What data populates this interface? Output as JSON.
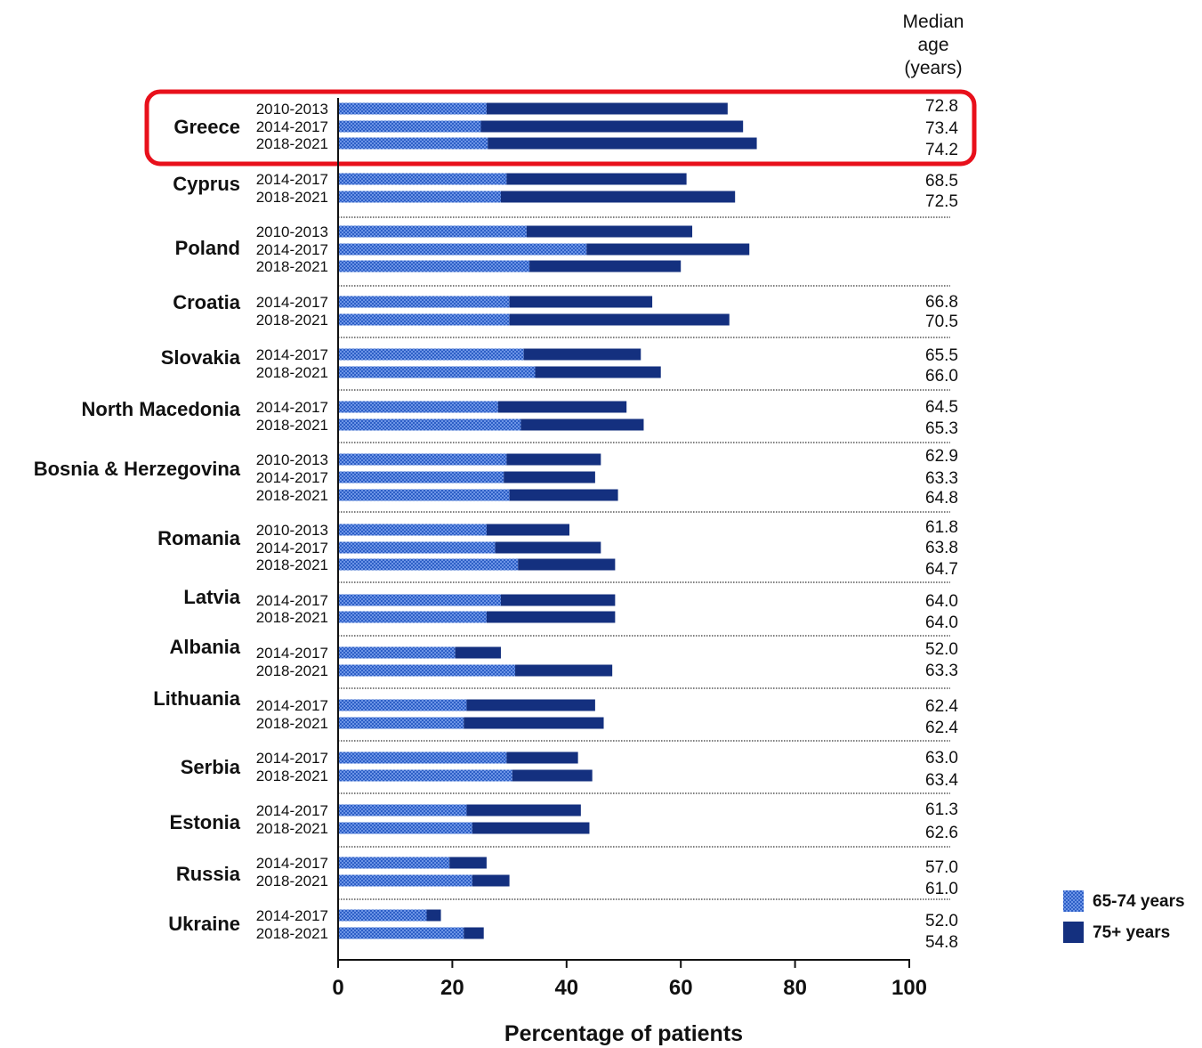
{
  "chart_data": {
    "type": "bar",
    "orientation": "horizontal",
    "stacked": true,
    "xlabel": "Percentage of patients",
    "xlim": [
      0,
      100
    ],
    "xticks": [
      "0",
      "20",
      "40",
      "60",
      "80",
      "100"
    ],
    "age_header_lines": [
      "Median",
      "age",
      "(years)"
    ],
    "legend": {
      "placement": "bottom-right",
      "items": [
        {
          "label": "65-74 years",
          "key": "s1"
        },
        {
          "label": "75+ years",
          "key": "s2"
        }
      ]
    },
    "colors": {
      "s1_base": "#2d5fc6",
      "s1_pattern": "#6c94e6",
      "s2": "#14307f",
      "highlight": "#e8101b",
      "separator": "#333333"
    },
    "highlight_group": "Greece",
    "groups": [
      {
        "country": "Greece",
        "bars": [
          {
            "period": "2010-2013",
            "s1": 26.0,
            "s2": 42.2,
            "age": "72.8"
          },
          {
            "period": "2014-2017",
            "s1": 25.0,
            "s2": 45.9,
            "age": "73.4"
          },
          {
            "period": "2018-2021",
            "s1": 26.2,
            "s2": 47.1,
            "age": "74.2"
          }
        ]
      },
      {
        "country": "Cyprus",
        "bars": [
          {
            "period": "2014-2017",
            "s1": 29.5,
            "s2": 31.5,
            "age": "68.5"
          },
          {
            "period": "2018-2021",
            "s1": 28.5,
            "s2": 41.0,
            "age": "72.5"
          }
        ]
      },
      {
        "country": "Poland",
        "bars": [
          {
            "period": "2010-2013",
            "s1": 33.0,
            "s2": 29.0,
            "age": ""
          },
          {
            "period": "2014-2017",
            "s1": 43.5,
            "s2": 28.5,
            "age": ""
          },
          {
            "period": "2018-2021",
            "s1": 33.5,
            "s2": 26.5,
            "age": ""
          }
        ]
      },
      {
        "country": "Croatia",
        "bars": [
          {
            "period": "2014-2017",
            "s1": 30.0,
            "s2": 25.0,
            "age": "66.8"
          },
          {
            "period": "2018-2021",
            "s1": 30.0,
            "s2": 38.5,
            "age": "70.5"
          }
        ]
      },
      {
        "country": "Slovakia",
        "bars": [
          {
            "period": "2014-2017",
            "s1": 32.5,
            "s2": 20.5,
            "age": "65.5"
          },
          {
            "period": "2018-2021",
            "s1": 34.5,
            "s2": 22.0,
            "age": "66.0"
          }
        ]
      },
      {
        "country": "North Macedonia",
        "bars": [
          {
            "period": "2014-2017",
            "s1": 28.0,
            "s2": 22.5,
            "age": "64.5"
          },
          {
            "period": "2018-2021",
            "s1": 32.0,
            "s2": 21.5,
            "age": "65.3"
          }
        ]
      },
      {
        "country": "Bosnia & Herzegovina",
        "bars": [
          {
            "period": "2010-2013",
            "s1": 29.5,
            "s2": 16.5,
            "age": "62.9"
          },
          {
            "period": "2014-2017",
            "s1": 29.0,
            "s2": 16.0,
            "age": "63.3"
          },
          {
            "period": "2018-2021",
            "s1": 30.0,
            "s2": 19.0,
            "age": "64.8"
          }
        ]
      },
      {
        "country": "Romania",
        "bars": [
          {
            "period": "2010-2013",
            "s1": 26.0,
            "s2": 14.5,
            "age": "61.8"
          },
          {
            "period": "2014-2017",
            "s1": 27.5,
            "s2": 18.5,
            "age": "63.8"
          },
          {
            "period": "2018-2021",
            "s1": 31.5,
            "s2": 17.0,
            "age": "64.7"
          }
        ]
      },
      {
        "country": "Latvia",
        "bars": [
          {
            "period": "2014-2017",
            "s1": 28.5,
            "s2": 20.0,
            "age": "64.0"
          },
          {
            "period": "2018-2021",
            "s1": 26.0,
            "s2": 22.5,
            "age": "64.0"
          }
        ]
      },
      {
        "country": "Albania",
        "bars": [
          {
            "period": "2014-2017",
            "s1": 20.5,
            "s2": 8.0,
            "age": "52.0"
          },
          {
            "period": "2018-2021",
            "s1": 31.0,
            "s2": 17.0,
            "age": "63.3"
          }
        ]
      },
      {
        "country": "Lithuania",
        "bars": [
          {
            "period": "2014-2017",
            "s1": 22.5,
            "s2": 22.5,
            "age": "62.4"
          },
          {
            "period": "2018-2021",
            "s1": 22.0,
            "s2": 24.5,
            "age": "62.4"
          }
        ]
      },
      {
        "country": "Serbia",
        "bars": [
          {
            "period": "2014-2017",
            "s1": 29.5,
            "s2": 12.5,
            "age": "63.0"
          },
          {
            "period": "2018-2021",
            "s1": 30.5,
            "s2": 14.0,
            "age": "63.4"
          }
        ]
      },
      {
        "country": "Estonia",
        "bars": [
          {
            "period": "2014-2017",
            "s1": 22.5,
            "s2": 20.0,
            "age": "61.3"
          },
          {
            "period": "2018-2021",
            "s1": 23.5,
            "s2": 20.5,
            "age": "62.6"
          }
        ]
      },
      {
        "country": "Russia",
        "bars": [
          {
            "period": "2014-2017",
            "s1": 19.5,
            "s2": 6.5,
            "age": "57.0"
          },
          {
            "period": "2018-2021",
            "s1": 23.5,
            "s2": 6.5,
            "age": "61.0"
          }
        ]
      },
      {
        "country": "Ukraine",
        "bars": [
          {
            "period": "2014-2017",
            "s1": 15.5,
            "s2": 2.5,
            "age": "52.0"
          },
          {
            "period": "2018-2021",
            "s1": 22.0,
            "s2": 3.5,
            "age": "54.8"
          }
        ]
      }
    ]
  }
}
